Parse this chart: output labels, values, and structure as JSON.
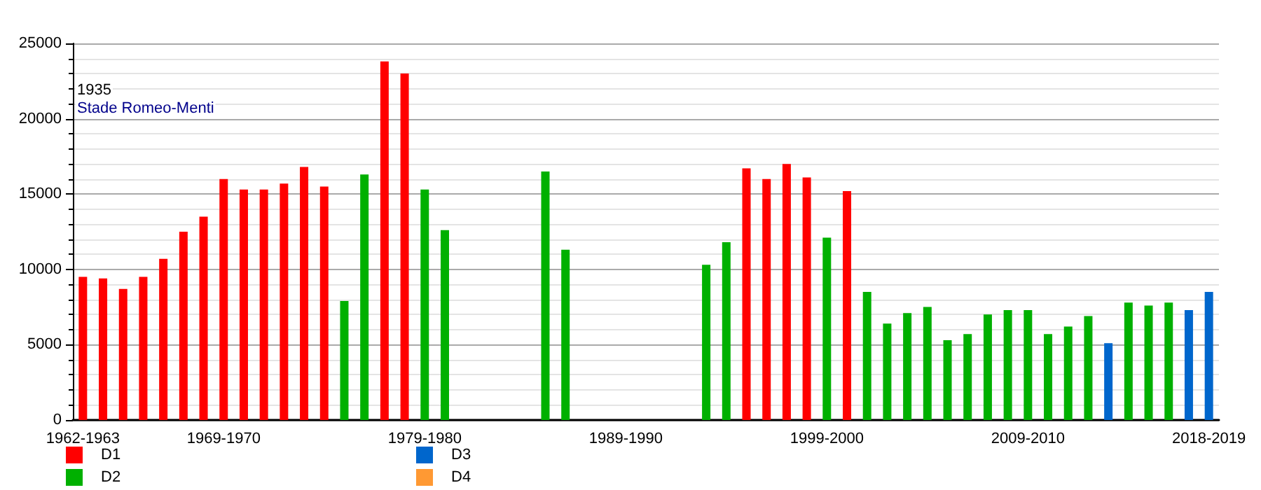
{
  "chart_data": {
    "type": "bar",
    "stacked": true,
    "annotations": [
      "1935",
      "Stade Romeo-Menti"
    ],
    "categories": [
      "1962-1963",
      null,
      null,
      null,
      null,
      null,
      null,
      "1969-1970",
      null,
      null,
      null,
      null,
      null,
      null,
      null,
      null,
      null,
      "1979-1980",
      null,
      null,
      null,
      null,
      null,
      null,
      null,
      null,
      null,
      "1989-1990",
      null,
      null,
      null,
      null,
      null,
      null,
      null,
      null,
      null,
      "1999-2000",
      null,
      null,
      null,
      null,
      null,
      null,
      null,
      null,
      null,
      "2009-2010",
      null,
      null,
      null,
      null,
      null,
      null,
      null,
      null,
      "2018-2019"
    ],
    "series": [
      {
        "name": "D1",
        "color": "#ff0000",
        "values": [
          9500,
          9400,
          8700,
          9500,
          10700,
          12500,
          13500,
          16000,
          15300,
          15300,
          15700,
          16800,
          15500,
          null,
          null,
          23800,
          23000,
          null,
          null,
          null,
          null,
          null,
          null,
          null,
          null,
          null,
          null,
          null,
          null,
          null,
          null,
          null,
          null,
          16700,
          16000,
          17000,
          16100,
          null,
          15200,
          null,
          null,
          null,
          null,
          null,
          null,
          null,
          null,
          null,
          null,
          null,
          null,
          null,
          null,
          null,
          null,
          null,
          null
        ]
      },
      {
        "name": "D2",
        "color": "#00b000",
        "values": [
          null,
          null,
          null,
          null,
          null,
          null,
          null,
          null,
          null,
          null,
          null,
          null,
          null,
          7900,
          16300,
          null,
          null,
          15300,
          12600,
          null,
          null,
          null,
          null,
          16500,
          11300,
          null,
          null,
          null,
          null,
          null,
          null,
          10300,
          11800,
          null,
          null,
          null,
          null,
          12100,
          null,
          8500,
          6400,
          7100,
          7500,
          5300,
          5700,
          7000,
          7300,
          7300,
          5700,
          6200,
          6900,
          null,
          7800,
          7600,
          7800,
          null,
          null
        ]
      },
      {
        "name": "D3",
        "color": "#0066cc",
        "values": [
          null,
          null,
          null,
          null,
          null,
          null,
          null,
          null,
          null,
          null,
          null,
          null,
          null,
          null,
          null,
          null,
          null,
          null,
          null,
          null,
          null,
          null,
          null,
          null,
          null,
          null,
          null,
          null,
          null,
          null,
          null,
          null,
          null,
          null,
          null,
          null,
          null,
          null,
          null,
          null,
          null,
          null,
          null,
          null,
          null,
          null,
          null,
          null,
          null,
          null,
          null,
          5100,
          null,
          null,
          null,
          7300,
          8500
        ]
      },
      {
        "name": "D4",
        "color": "#ff9933",
        "values": [
          null,
          null,
          null,
          null,
          null,
          null,
          null,
          null,
          null,
          null,
          null,
          null,
          null,
          null,
          null,
          null,
          null,
          null,
          null,
          null,
          null,
          null,
          null,
          null,
          null,
          null,
          null,
          null,
          null,
          null,
          null,
          null,
          null,
          null,
          null,
          null,
          null,
          null,
          null,
          null,
          null,
          null,
          null,
          null,
          null,
          null,
          null,
          null,
          null,
          null,
          null,
          null,
          null,
          null,
          null,
          null,
          null
        ]
      }
    ],
    "ylim": [
      0,
      25000
    ],
    "yticks": [
      0,
      5000,
      10000,
      15000,
      20000,
      25000
    ],
    "grid": "y",
    "legend": "bottom left"
  }
}
